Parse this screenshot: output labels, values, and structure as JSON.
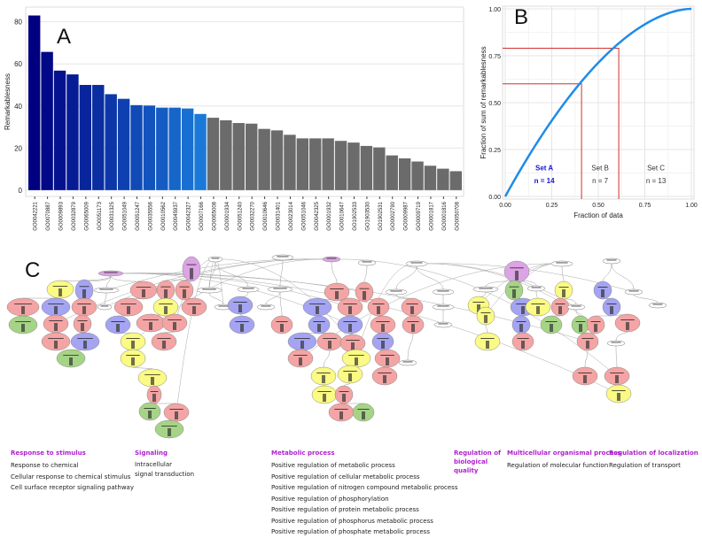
{
  "chart_data": [
    {
      "type": "bar",
      "panel_label": "A",
      "ylabel": "Remarkablesness",
      "ylim": [
        -3,
        87
      ],
      "yticks": [
        0,
        20,
        40,
        60,
        80
      ],
      "grid": true,
      "categories": [
        "GO0042221",
        "GO0070887",
        "GO0009893",
        "GO0032879",
        "GO0065009",
        "GO0051173",
        "GO0031325",
        "GO0051049",
        "GO0051247",
        "GO0035556",
        "GO0010562",
        "GO0045937",
        "GO0042327",
        "GO0007166",
        "GO0065008",
        "GO0001934",
        "GO0051240",
        "GO0032270",
        "GO0010646",
        "GO0031401",
        "GO0023014",
        "GO0051046",
        "GO0042325",
        "GO0001932",
        "GO0010647",
        "GO1902533",
        "GO1903530",
        "GO1902531",
        "GO0002790",
        "GO0009987",
        "GO0009719",
        "GO0001817",
        "GO0001816",
        "GO0050708"
      ],
      "values": [
        83,
        65.7,
        56.8,
        55,
        50,
        50,
        45.6,
        43.4,
        40.4,
        40.2,
        39.2,
        39.2,
        38.8,
        36.2,
        34.4,
        33.2,
        31.9,
        31.6,
        29.1,
        28.4,
        26.3,
        24.6,
        24.6,
        24.6,
        23.4,
        22.6,
        21.0,
        20.3,
        16.5,
        15.1,
        13.6,
        11.6,
        10.2,
        9.0
      ],
      "highlight_count": 14,
      "colors": {
        "highlight_start": "#000080",
        "highlight_end": "#1a78d8",
        "other": "#6b6b6b"
      }
    },
    {
      "type": "line",
      "panel_label": "B",
      "xlabel": "Fraction of data",
      "ylabel": "Fraction of sum of remarkablesness",
      "xlim": [
        0,
        1
      ],
      "ylim": [
        0,
        1
      ],
      "xticks": [
        "0.00",
        "0.25",
        "0.50",
        "0.75",
        "1.00"
      ],
      "yticks": [
        "0.00",
        "0.25",
        "0.50",
        "0.75",
        "1.00"
      ],
      "grid": true,
      "curve_color": "#1e8ce8",
      "cut_color": "#d03030",
      "cuts": [
        {
          "x": 0.41,
          "y": 0.6
        },
        {
          "x": 0.61,
          "y": 0.79
        }
      ],
      "sets": [
        {
          "name": "Set A",
          "n": "n = 14",
          "color": "#1515d0"
        },
        {
          "name": "Set B",
          "n": "n = 7",
          "color": "#333333"
        },
        {
          "name": "Set C",
          "n": "n = 13",
          "color": "#333333"
        }
      ]
    }
  ],
  "network": {
    "panel_label": "C",
    "colors": {
      "pink": "#f4a4a4",
      "blue": "#a4a4f2",
      "yellow": "#fafa84",
      "green": "#a6d486",
      "purple": "#dca4e4",
      "white": "#ffffff"
    }
  },
  "legend": [
    {
      "heading": "Response to stimulus",
      "items": [
        "Response to chemical",
        "Cellular response to chemical stimulus",
        "Cell surface receptor signaling pathway"
      ]
    },
    {
      "heading": "Signaling",
      "items": [
        "Intracellular",
        "signal transduction"
      ]
    },
    {
      "heading": "Metabolic process",
      "items": [
        "Positive regulation of metabolic process",
        "Positive regulation of cellular metabolic process",
        "Positive regulation of nitrogen compound metabolic process",
        "Positive regulation of phosphorylation",
        "Positive regulation of protein metabolic process",
        "Positive regulation of phosphorus metabolic process",
        "Positive regulation of phosphate metabolic process"
      ]
    },
    {
      "heading": "Regulation of biological quality",
      "items": []
    },
    {
      "heading": "Multicellular organismal process",
      "items": [
        "Regulation of molecular function"
      ]
    },
    {
      "heading": "Regulation of localization",
      "items": [
        "Regulation of transport"
      ]
    }
  ]
}
